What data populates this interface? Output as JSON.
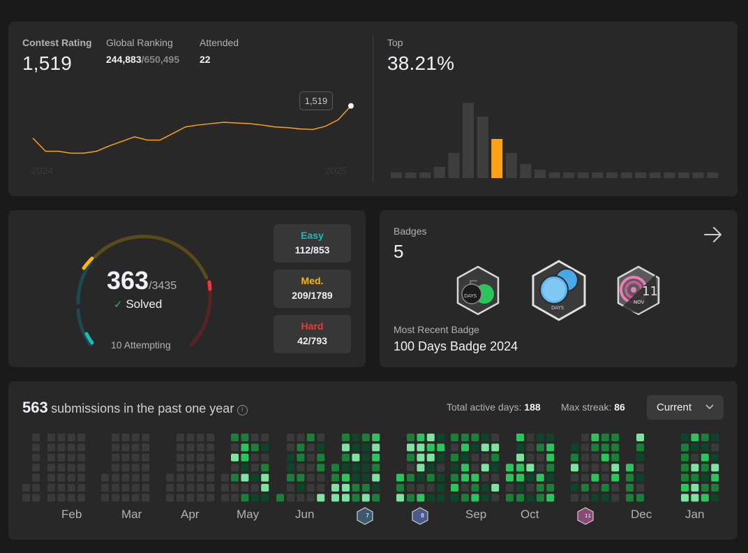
{
  "contest": {
    "rating_label": "Contest Rating",
    "rating_value": "1,519",
    "ranking_label": "Global Ranking",
    "ranking_value": "244,883",
    "ranking_total": "/650,495",
    "attended_label": "Attended",
    "attended_value": "22",
    "top_label": "Top",
    "top_value": "38.21%",
    "tooltip_value": "1,519",
    "year_start": "2024",
    "year_end": "2025"
  },
  "rating_chart": {
    "type": "line",
    "values": [
      1470,
      1450,
      1450,
      1447,
      1447,
      1450,
      1458,
      1465,
      1472,
      1467,
      1467,
      1477,
      1487,
      1490,
      1492,
      1494,
      1493,
      1492,
      1490,
      1487,
      1486,
      1484,
      1483,
      1488,
      1498,
      1519
    ],
    "color": "#ffa116"
  },
  "distribution_chart": {
    "type": "bar",
    "values": [
      2,
      2,
      2,
      4,
      9,
      27,
      22,
      14,
      9,
      5,
      3,
      2,
      2,
      2,
      2,
      2,
      2,
      2,
      2,
      2,
      2,
      2,
      2
    ],
    "highlight_index": 7,
    "bar_color": "#3e3e3e",
    "highlight_color": "#ffa116"
  },
  "solved": {
    "count": "363",
    "total": "/3435",
    "solved_label": "Solved",
    "attempting": "10 Attempting",
    "easy_label": "Easy",
    "easy_value": "112/853",
    "easy_color": "#1cbaba",
    "med_label": "Med.",
    "med_value": "209/1789",
    "med_color": "#ffb700",
    "hard_label": "Hard",
    "hard_value": "42/793",
    "hard_color": "#f63737"
  },
  "badges": {
    "label": "Badges",
    "count": "5",
    "recent_label": "Most Recent Badge",
    "recent_name": "100 Days Badge 2024",
    "badge1_text": "DAYS",
    "badge2_text": "DAYS",
    "badge3_text": "NOV",
    "badge3_number": "11",
    "mini1": "7",
    "mini2": "8",
    "mini3": "11"
  },
  "submissions": {
    "count": "563",
    "title": "submissions in the past one year",
    "active_label": "Total active days:",
    "active_value": "188",
    "streak_label": "Max streak:",
    "streak_value": "86",
    "dropdown_value": "Current",
    "months": [
      "Feb",
      "Mar",
      "Apr",
      "May",
      "Jun",
      "Sep",
      "Oct",
      "Dec",
      "Jan"
    ],
    "level_colors": [
      "#3a3a3a",
      "#0e4429",
      "#1a7f37",
      "#2cc55c",
      "#7ee2a0"
    ]
  }
}
